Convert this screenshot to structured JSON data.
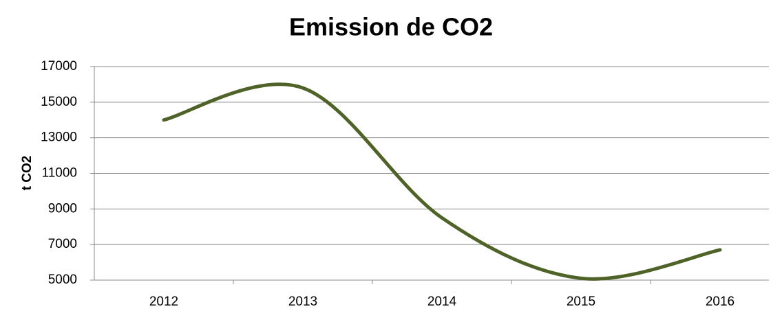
{
  "chart_data": {
    "type": "line",
    "title": "Emission de CO2",
    "y_label": "t CO2",
    "categories": [
      "2012",
      "2013",
      "2014",
      "2015",
      "2016"
    ],
    "series": [
      {
        "name": "t CO2",
        "color": "#4f6228",
        "values": [
          14000,
          15800,
          8500,
          5100,
          6700
        ]
      }
    ],
    "ylim": [
      5000,
      17000
    ],
    "yticks": [
      5000,
      7000,
      9000,
      11000,
      13000,
      15000,
      17000
    ],
    "grid": true,
    "smooth": true
  }
}
